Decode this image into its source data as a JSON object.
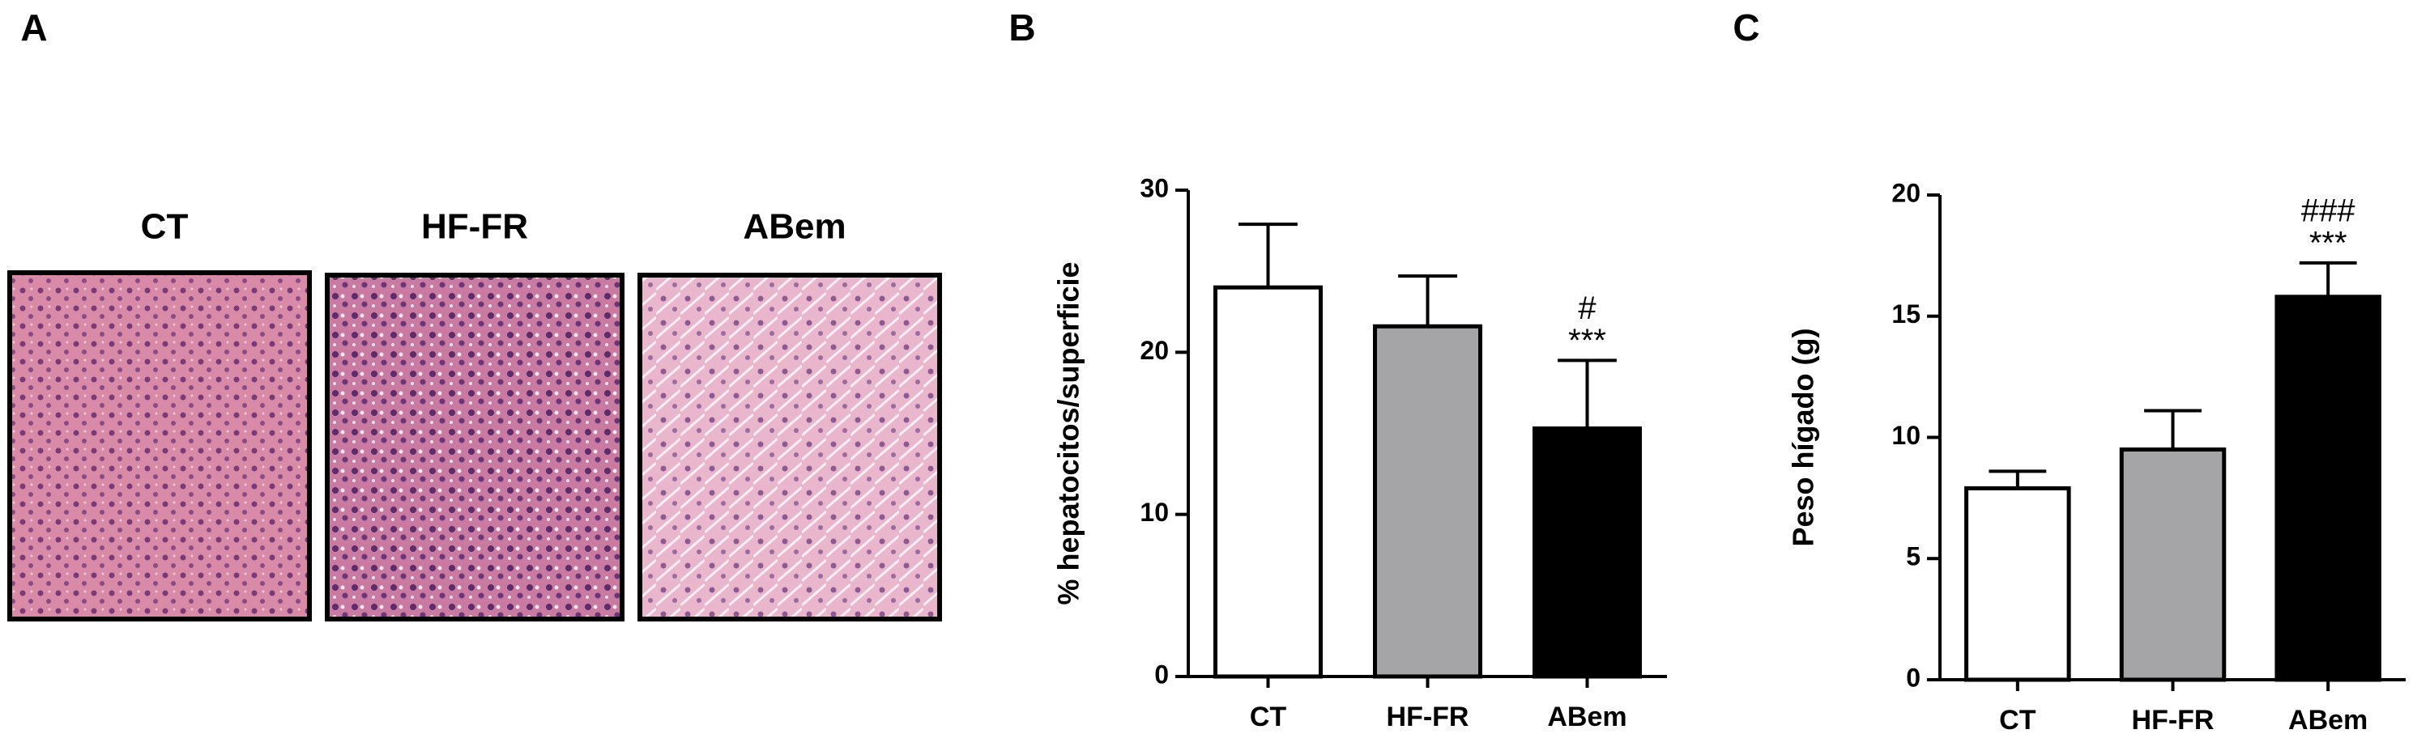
{
  "histology": {
    "label": "A",
    "titles": [
      "CT",
      "HF-FR",
      "ABem"
    ]
  },
  "chart_data": [
    {
      "type": "bar",
      "label": "B",
      "ylabel": "% hepatocitos/superficie",
      "categories": [
        "CT",
        "HF-FR",
        "ABem"
      ],
      "values": [
        24,
        21.6,
        15.3
      ],
      "errors": [
        3.9,
        3.1,
        4.2
      ],
      "colors": [
        "#ffffff",
        "#a5a5a8",
        "#000000"
      ],
      "annotations": [
        null,
        null,
        [
          "#",
          "***"
        ]
      ],
      "ylim": [
        0,
        30
      ],
      "yticks": [
        0,
        10,
        20,
        30
      ]
    },
    {
      "type": "bar",
      "label": "C",
      "ylabel": "Peso hígado (g)",
      "categories": [
        "CT",
        "HF-FR",
        "ABem"
      ],
      "values": [
        7.9,
        9.5,
        15.8
      ],
      "errors": [
        0.7,
        1.6,
        1.4
      ],
      "colors": [
        "#ffffff",
        "#a5a5a8",
        "#000000"
      ],
      "annotations": [
        null,
        null,
        [
          "###",
          "***"
        ]
      ],
      "ylim": [
        0,
        20
      ],
      "yticks": [
        0,
        5,
        10,
        15,
        20
      ]
    }
  ]
}
